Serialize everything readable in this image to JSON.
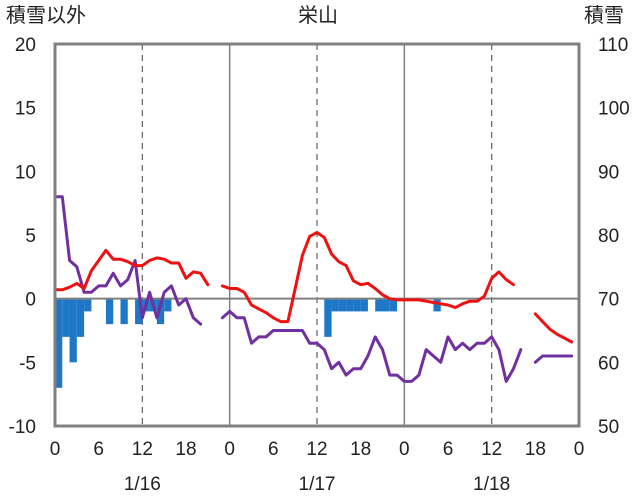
{
  "chart_data": {
    "type": "line+bar",
    "title": "栄山",
    "left_axis_label": "積雪以外",
    "right_axis_label": "積雪",
    "left_ylim": [
      -10,
      20
    ],
    "left_ticks": [
      "20",
      "15",
      "10",
      "5",
      "0",
      "-5",
      "-10"
    ],
    "right_ylim": [
      50,
      110
    ],
    "right_ticks": [
      "110",
      "100",
      "90",
      "80",
      "70",
      "60",
      "50"
    ],
    "x_range_hours": [
      0,
      72
    ],
    "x_ticks": [
      "0",
      "6",
      "12",
      "18",
      "0",
      "6",
      "12",
      "18",
      "0",
      "6",
      "12",
      "18",
      "0"
    ],
    "date_labels": [
      "1/16",
      "1/17",
      "1/18"
    ],
    "colors": {
      "temperature": "#ee1111",
      "snow_depth": "#7030a0",
      "precipitation": "#1f77c8",
      "frame": "#808080",
      "zero_line": "#808080",
      "grid": "#606060"
    },
    "series": [
      {
        "name": "temperature",
        "axis": "left",
        "segments": [
          [
            [
              0,
              0.7
            ],
            [
              1,
              0.7
            ],
            [
              2,
              0.9
            ],
            [
              3,
              1.2
            ],
            [
              4,
              0.8
            ],
            [
              5,
              2.2
            ],
            [
              6,
              3.0
            ],
            [
              7,
              3.8
            ],
            [
              8,
              3.1
            ],
            [
              9,
              3.1
            ],
            [
              10,
              2.9
            ],
            [
              11,
              2.6
            ],
            [
              12,
              2.6
            ],
            [
              13,
              3.0
            ],
            [
              14,
              3.2
            ],
            [
              15,
              3.1
            ],
            [
              16,
              2.8
            ],
            [
              17,
              2.8
            ],
            [
              18,
              1.6
            ],
            [
              19,
              2.1
            ],
            [
              20,
              2.0
            ],
            [
              21,
              1.1
            ]
          ],
          [
            [
              23,
              1.0
            ],
            [
              24,
              0.8
            ],
            [
              25,
              0.8
            ],
            [
              26,
              0.5
            ],
            [
              27,
              -0.5
            ],
            [
              28,
              -0.8
            ],
            [
              29,
              -1.1
            ],
            [
              30,
              -1.5
            ],
            [
              31,
              -1.8
            ],
            [
              32,
              -1.8
            ],
            [
              33,
              0.8
            ],
            [
              34,
              3.4
            ],
            [
              35,
              4.9
            ],
            [
              36,
              5.2
            ],
            [
              37,
              4.8
            ],
            [
              38,
              3.5
            ],
            [
              39,
              2.9
            ],
            [
              40,
              2.6
            ],
            [
              41,
              1.4
            ],
            [
              42,
              1.1
            ],
            [
              43,
              1.2
            ],
            [
              44,
              0.8
            ],
            [
              45,
              0.3
            ],
            [
              46,
              0.0
            ],
            [
              47,
              -0.1
            ],
            [
              48,
              -0.1
            ],
            [
              49,
              -0.1
            ],
            [
              50,
              -0.1
            ],
            [
              51,
              -0.2
            ],
            [
              52,
              -0.3
            ],
            [
              53,
              -0.4
            ],
            [
              54,
              -0.5
            ],
            [
              55,
              -0.7
            ],
            [
              56,
              -0.4
            ],
            [
              57,
              -0.2
            ],
            [
              58,
              -0.2
            ],
            [
              59,
              0.2
            ],
            [
              60,
              1.6
            ],
            [
              61,
              2.1
            ],
            [
              62,
              1.5
            ],
            [
              63,
              1.1
            ]
          ],
          [
            [
              66,
              -1.2
            ],
            [
              67,
              -1.8
            ],
            [
              68,
              -2.4
            ],
            [
              69,
              -2.8
            ],
            [
              70,
              -3.1
            ],
            [
              71,
              -3.4
            ]
          ]
        ]
      },
      {
        "name": "snow_depth",
        "axis": "right",
        "segments": [
          [
            [
              0,
              86
            ],
            [
              1,
              86
            ],
            [
              2,
              76
            ],
            [
              3,
              75
            ],
            [
              4,
              71
            ],
            [
              5,
              71
            ],
            [
              6,
              72
            ],
            [
              7,
              72
            ],
            [
              8,
              74
            ],
            [
              9,
              72
            ],
            [
              10,
              73
            ],
            [
              11,
              76
            ],
            [
              12,
              67
            ],
            [
              13,
              71
            ],
            [
              14,
              67
            ],
            [
              15,
              71
            ],
            [
              16,
              72
            ],
            [
              17,
              69
            ],
            [
              18,
              70
            ],
            [
              19,
              67
            ],
            [
              20,
              66
            ]
          ],
          [
            [
              23,
              67
            ],
            [
              24,
              68
            ],
            [
              25,
              67
            ],
            [
              26,
              67
            ],
            [
              27,
              63
            ],
            [
              28,
              64
            ],
            [
              29,
              64
            ],
            [
              30,
              65
            ],
            [
              31,
              65
            ],
            [
              32,
              65
            ],
            [
              33,
              65
            ],
            [
              34,
              65
            ],
            [
              35,
              63
            ],
            [
              36,
              63
            ],
            [
              37,
              62
            ],
            [
              38,
              59
            ],
            [
              39,
              60
            ],
            [
              40,
              58
            ],
            [
              41,
              59
            ],
            [
              42,
              59
            ],
            [
              43,
              61
            ],
            [
              44,
              64
            ],
            [
              45,
              62
            ],
            [
              46,
              58
            ],
            [
              47,
              58
            ],
            [
              48,
              57
            ],
            [
              49,
              57
            ],
            [
              50,
              58
            ],
            [
              51,
              62
            ],
            [
              52,
              61
            ],
            [
              53,
              60
            ],
            [
              54,
              64
            ],
            [
              55,
              62
            ],
            [
              56,
              63
            ],
            [
              57,
              62
            ],
            [
              58,
              63
            ],
            [
              59,
              63
            ],
            [
              60,
              64
            ],
            [
              61,
              62
            ],
            [
              62,
              57
            ],
            [
              63,
              59
            ],
            [
              64,
              62
            ]
          ],
          [
            [
              66,
              60
            ],
            [
              67,
              61
            ],
            [
              68,
              61
            ],
            [
              69,
              61
            ],
            [
              70,
              61
            ],
            [
              71,
              61
            ]
          ]
        ]
      },
      {
        "name": "precipitation",
        "axis": "left",
        "type": "bar",
        "bars": [
          [
            0,
            -7.0
          ],
          [
            1,
            -3.0
          ],
          [
            2,
            -5.0
          ],
          [
            3,
            -3.0
          ],
          [
            4,
            -1.0
          ],
          [
            7,
            -2.0
          ],
          [
            9,
            -2.0
          ],
          [
            11,
            -2.0
          ],
          [
            12,
            -1.0
          ],
          [
            13,
            -1.0
          ],
          [
            14,
            -2.0
          ],
          [
            15,
            -1.0
          ],
          [
            37,
            -3.0
          ],
          [
            38,
            -1.0
          ],
          [
            39,
            -1.0
          ],
          [
            40,
            -1.0
          ],
          [
            41,
            -1.0
          ],
          [
            42,
            -1.0
          ],
          [
            44,
            -1.0
          ],
          [
            45,
            -1.0
          ],
          [
            46,
            -1.0
          ],
          [
            52,
            -1.0
          ]
        ]
      }
    ]
  }
}
